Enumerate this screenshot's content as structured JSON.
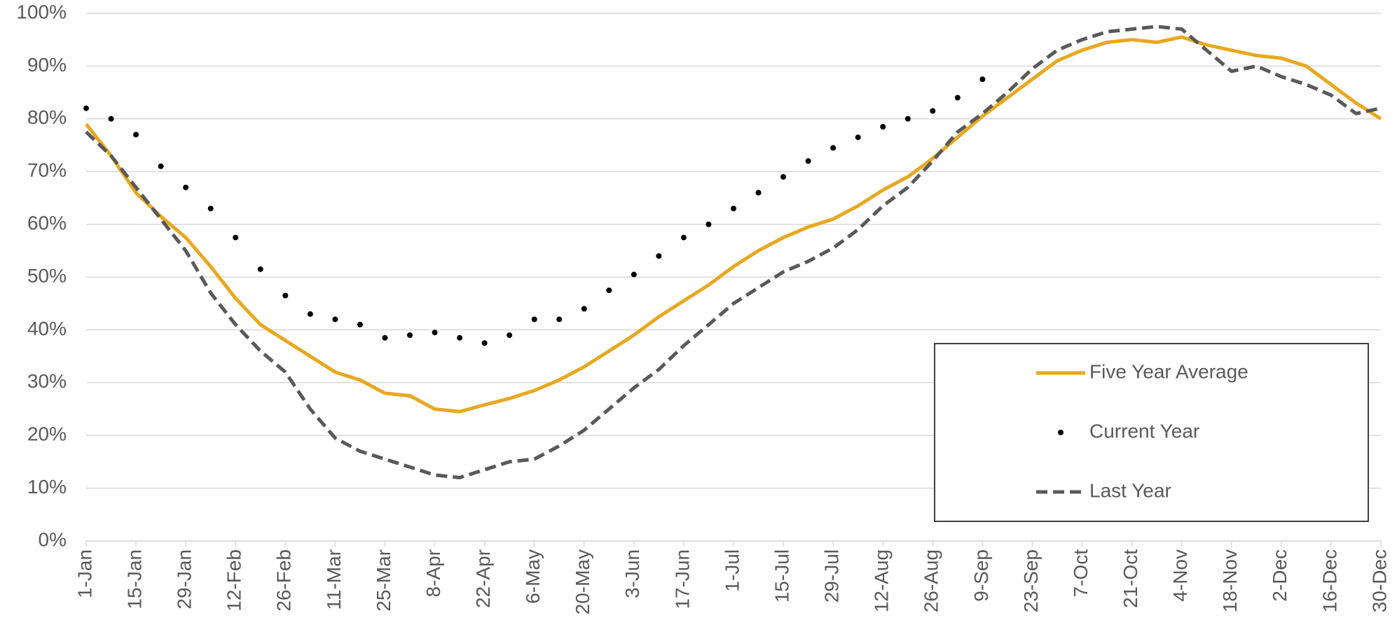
{
  "chart_data": {
    "type": "line",
    "categories": [
      "1-Jan",
      null,
      "15-Jan",
      null,
      "29-Jan",
      null,
      "12-Feb",
      null,
      "26-Feb",
      null,
      "11-Mar",
      null,
      "25-Mar",
      null,
      "8-Apr",
      null,
      "22-Apr",
      null,
      "6-May",
      null,
      "20-May",
      null,
      "3-Jun",
      null,
      "17-Jun",
      null,
      "1-Jul",
      null,
      "15-Jul",
      null,
      "29-Jul",
      null,
      "12-Aug",
      null,
      "26-Aug",
      null,
      "9-Sep",
      null,
      "23-Sep",
      null,
      "7-Oct",
      null,
      "21-Oct",
      null,
      "4-Nov",
      null,
      "18-Nov",
      null,
      "2-Dec",
      null,
      "16-Dec",
      null,
      "30-Dec"
    ],
    "series": [
      {
        "name": "Five Year Average",
        "color": "#e8a820",
        "style": "solid",
        "values": [
          79,
          73,
          66,
          61.5,
          57.5,
          52,
          46,
          41,
          38,
          35,
          32,
          30.5,
          28,
          27.5,
          25,
          24.5,
          25.8,
          27,
          28.5,
          30.5,
          33,
          36,
          39,
          42.5,
          45.5,
          48.5,
          52,
          55,
          57.5,
          59.5,
          61,
          63.5,
          66.5,
          69,
          72.5,
          76.5,
          80.5,
          84,
          87.5,
          91,
          93,
          94.5,
          95,
          94.5,
          95.5,
          94,
          93,
          92,
          91.5,
          90,
          86.5,
          83,
          80
        ]
      },
      {
        "name": "Current Year",
        "color": "#000000",
        "style": "dots",
        "values": [
          82,
          80,
          77,
          71,
          67,
          63,
          57.5,
          51.5,
          46.5,
          43,
          42,
          41,
          38.5,
          39,
          39.5,
          38.5,
          37.5,
          39,
          42,
          42,
          44,
          47.5,
          50.5,
          54,
          57.5,
          60,
          63,
          66,
          69,
          72,
          74.5,
          76.5,
          78.5,
          80,
          81.5,
          84,
          87.5,
          null,
          null,
          null,
          null,
          null,
          null,
          null,
          null,
          null,
          null,
          null,
          null,
          null,
          null,
          null,
          null
        ]
      },
      {
        "name": "Last Year",
        "color": "#595959",
        "style": "dashed",
        "values": [
          77.5,
          73,
          67,
          61,
          55,
          47,
          41,
          36,
          32,
          25,
          19.5,
          17,
          15.5,
          14,
          12.5,
          12,
          13.5,
          15,
          15.5,
          18,
          21,
          25,
          29,
          32.5,
          37,
          41,
          45,
          48,
          51,
          53,
          55.5,
          59,
          63.5,
          67,
          72,
          77.5,
          81,
          85,
          89.5,
          93,
          95,
          96.5,
          97,
          97.5,
          97,
          93,
          89,
          90,
          88,
          86.5,
          84.5,
          81,
          82
        ]
      }
    ],
    "ylim": [
      0,
      100
    ],
    "yticks": [
      {
        "value": 0,
        "label": "0%"
      },
      {
        "value": 10,
        "label": "10%"
      },
      {
        "value": 20,
        "label": "20%"
      },
      {
        "value": 30,
        "label": "30%"
      },
      {
        "value": 40,
        "label": "40%"
      },
      {
        "value": 50,
        "label": "50%"
      },
      {
        "value": 60,
        "label": "60%"
      },
      {
        "value": 70,
        "label": "70%"
      },
      {
        "value": 80,
        "label": "80%"
      },
      {
        "value": 90,
        "label": "90%"
      },
      {
        "value": 100,
        "label": "100%"
      }
    ],
    "grid": true,
    "legend": "lower right"
  }
}
